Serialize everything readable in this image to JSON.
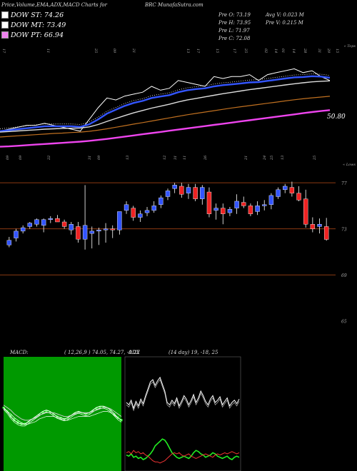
{
  "header": {
    "left_title": "Price,Volume,EMA,ADX,MACD Charts for",
    "right_title": "BRC MunafaSutra.com"
  },
  "legend": [
    {
      "label": "DOW ST: 74.26",
      "color": "#ffffff"
    },
    {
      "label": "DOW MT: 73.49",
      "color": "#ffffff"
    },
    {
      "label": "DOW PT: 66.94",
      "color": "#ee82ee"
    }
  ],
  "stats": {
    "open": "Pre  O: 73.19",
    "high": "Pre  H: 73.95",
    "low": "Pre  L: 71.97",
    "close": "Pre  C: 72.08",
    "avg_volume": "Avg V: 0.023 M",
    "pre_volume": "Pre  V: 0.215 M"
  },
  "top_panel": {
    "right_label_top": "« Tops",
    "right_label_bottom": "« Lows",
    "price_label": "50.80",
    "top_dates": [
      "17",
      "11",
      "25",
      "09",
      "21",
      "13",
      "17",
      "15",
      "17",
      "25",
      "02",
      "14",
      "01",
      "14",
      "28",
      "31",
      "29",
      "15"
    ],
    "bottom_dates": [
      "09",
      "09",
      "22",
      "31",
      "09",
      "13",
      "12",
      "31",
      "11",
      "26",
      "21",
      "24",
      "25",
      "13",
      "25"
    ]
  },
  "candle_panel": {
    "levels": [
      "77",
      "73",
      "69",
      "65"
    ]
  },
  "chart_data": [
    {
      "type": "line",
      "title": "",
      "description_series": [
        "price",
        "ema_short",
        "ema_mid",
        "ema_long",
        "dow_pt"
      ],
      "series": [
        {
          "name": "",
          "color": "#ffffff",
          "values": [
            24,
            25,
            26,
            27,
            27,
            28,
            27,
            26,
            25,
            24,
            30,
            36,
            41,
            40,
            42,
            43,
            44,
            47,
            45,
            46,
            50,
            49,
            48,
            47,
            52,
            51,
            52,
            52,
            53,
            50,
            53,
            54,
            55,
            56,
            54,
            55,
            52,
            50
          ]
        },
        {
          "name": "",
          "color": "#3355ff",
          "values": [
            24,
            24.5,
            25,
            25.5,
            26,
            26.5,
            26.5,
            26.5,
            26.5,
            26.2,
            27.5,
            30,
            33,
            35,
            37,
            38.5,
            39.5,
            41,
            41.8,
            42.5,
            44,
            45,
            45.6,
            46,
            47,
            47.6,
            48,
            48.5,
            49,
            49.2,
            49.8,
            50.4,
            51,
            51.6,
            51.8,
            52.2,
            52,
            51.4
          ]
        },
        {
          "name": "",
          "color": "#dddddd",
          "values": [
            23.5,
            23.8,
            24.1,
            24.4,
            24.7,
            25,
            25.2,
            25.4,
            25.5,
            25.6,
            26.2,
            27.4,
            29,
            30.5,
            32,
            33.4,
            34.6,
            35.8,
            36.8,
            37.8,
            39,
            40,
            40.8,
            41.6,
            42.4,
            43.2,
            43.9,
            44.6,
            45.3,
            45.9,
            46.5,
            47.1,
            47.7,
            48.3,
            48.8,
            49.3,
            49.6,
            49.8
          ]
        },
        {
          "name": "",
          "color": "#c07020",
          "values": [
            21,
            21.3,
            21.6,
            21.9,
            22.2,
            22.5,
            22.8,
            23,
            23.3,
            23.5,
            23.9,
            24.5,
            25.2,
            26,
            26.8,
            27.6,
            28.4,
            29.2,
            30,
            30.8,
            31.6,
            32.4,
            33.1,
            33.8,
            34.5,
            35.2,
            35.9,
            36.5,
            37.1,
            37.7,
            38.3,
            38.9,
            39.5,
            40.1,
            40.6,
            41.1,
            41.5,
            41.9
          ]
        },
        {
          "name": "",
          "color": "#ee44ee",
          "values": [
            16,
            16.2,
            16.5,
            16.8,
            17.1,
            17.4,
            17.7,
            18,
            18.3,
            18.6,
            19,
            19.5,
            20,
            20.6,
            21.2,
            21.8,
            22.4,
            23,
            23.6,
            24.2,
            24.8,
            25.4,
            26,
            26.6,
            27.2,
            27.8,
            28.4,
            29,
            29.6,
            30.2,
            30.8,
            31.4,
            32,
            32.6,
            33.2,
            33.8,
            34.3,
            34.8
          ]
        }
      ]
    },
    {
      "type": "candlestick",
      "title": "",
      "y_range": [
        63,
        78
      ],
      "candles": [
        {
          "o": 71.6,
          "h": 72.3,
          "l": 71.4,
          "c": 72.0
        },
        {
          "o": 72.2,
          "h": 73.0,
          "l": 71.9,
          "c": 72.8
        },
        {
          "o": 72.8,
          "h": 73.3,
          "l": 72.6,
          "c": 73.1
        },
        {
          "o": 73.2,
          "h": 73.6,
          "l": 73.0,
          "c": 73.5
        },
        {
          "o": 73.4,
          "h": 73.9,
          "l": 73.2,
          "c": 73.8
        },
        {
          "o": 73.3,
          "h": 73.9,
          "l": 72.7,
          "c": 73.8
        },
        {
          "o": 73.8,
          "h": 74.1,
          "l": 73.5,
          "c": 73.9
        },
        {
          "o": 73.9,
          "h": 74.2,
          "l": 73.6,
          "c": 73.6
        },
        {
          "o": 73.6,
          "h": 73.8,
          "l": 73.0,
          "c": 73.2
        },
        {
          "o": 72.9,
          "h": 73.6,
          "l": 72.5,
          "c": 73.4
        },
        {
          "o": 73.2,
          "h": 73.6,
          "l": 71.8,
          "c": 72.1
        },
        {
          "o": 72.1,
          "h": 76.8,
          "l": 71.2,
          "c": 73.3
        },
        {
          "o": 72.6,
          "h": 73.2,
          "l": 71.3,
          "c": 72.8
        },
        {
          "o": 72.8,
          "h": 73.1,
          "l": 71.6,
          "c": 72.9
        },
        {
          "o": 72.9,
          "h": 73.5,
          "l": 71.8,
          "c": 73.0
        },
        {
          "o": 73.0,
          "h": 73.3,
          "l": 72.2,
          "c": 72.9
        },
        {
          "o": 72.9,
          "h": 74.5,
          "l": 72.5,
          "c": 74.5
        },
        {
          "o": 74.6,
          "h": 75.4,
          "l": 74.3,
          "c": 75.1
        },
        {
          "o": 74.8,
          "h": 75.0,
          "l": 73.7,
          "c": 74.0
        },
        {
          "o": 74.0,
          "h": 74.6,
          "l": 73.6,
          "c": 74.3
        },
        {
          "o": 74.4,
          "h": 74.9,
          "l": 74.1,
          "c": 74.6
        },
        {
          "o": 74.6,
          "h": 75.4,
          "l": 74.4,
          "c": 75.0
        },
        {
          "o": 75.1,
          "h": 75.9,
          "l": 74.8,
          "c": 75.7
        },
        {
          "o": 75.8,
          "h": 76.5,
          "l": 75.5,
          "c": 76.3
        },
        {
          "o": 76.5,
          "h": 77.0,
          "l": 76.1,
          "c": 76.8
        },
        {
          "o": 76.7,
          "h": 77.0,
          "l": 75.7,
          "c": 76.0
        },
        {
          "o": 76.1,
          "h": 76.9,
          "l": 75.6,
          "c": 76.6
        },
        {
          "o": 76.6,
          "h": 76.9,
          "l": 75.4,
          "c": 75.6
        },
        {
          "o": 75.6,
          "h": 76.8,
          "l": 75.1,
          "c": 76.6
        },
        {
          "o": 76.2,
          "h": 76.6,
          "l": 74.0,
          "c": 74.3
        },
        {
          "o": 74.6,
          "h": 75.2,
          "l": 73.8,
          "c": 74.8
        },
        {
          "o": 74.8,
          "h": 75.2,
          "l": 73.4,
          "c": 74.3
        },
        {
          "o": 74.4,
          "h": 74.9,
          "l": 74.1,
          "c": 74.7
        },
        {
          "o": 74.8,
          "h": 76.0,
          "l": 74.3,
          "c": 75.4
        },
        {
          "o": 75.3,
          "h": 75.8,
          "l": 74.8,
          "c": 75.0
        },
        {
          "o": 75.0,
          "h": 75.2,
          "l": 74.1,
          "c": 74.3
        },
        {
          "o": 74.5,
          "h": 75.4,
          "l": 74.2,
          "c": 75.0
        },
        {
          "o": 75.0,
          "h": 75.5,
          "l": 74.6,
          "c": 75.1
        },
        {
          "o": 75.1,
          "h": 76.1,
          "l": 74.7,
          "c": 75.9
        },
        {
          "o": 75.8,
          "h": 76.6,
          "l": 75.6,
          "c": 76.4
        },
        {
          "o": 76.4,
          "h": 76.9,
          "l": 76.1,
          "c": 76.7
        },
        {
          "o": 76.6,
          "h": 77.1,
          "l": 75.8,
          "c": 76.1
        },
        {
          "o": 76.1,
          "h": 76.7,
          "l": 75.4,
          "c": 75.5
        },
        {
          "o": 75.6,
          "h": 76.4,
          "l": 73.1,
          "c": 73.4
        },
        {
          "o": 73.4,
          "h": 74.0,
          "l": 72.7,
          "c": 73.0
        },
        {
          "o": 73.2,
          "h": 73.9,
          "l": 72.6,
          "c": 73.4
        },
        {
          "o": 73.2,
          "h": 73.95,
          "l": 71.97,
          "c": 72.08
        }
      ],
      "bullish_color": "#3355ff",
      "bearish_color": "#ee2222"
    },
    {
      "type": "line",
      "title": "MACD:",
      "subtitle": "( 12,26,9 ) 74.05,  74.27,  -0.22",
      "series": [
        {
          "name": "",
          "color": "#ffffff",
          "values": [
            -1.0,
            -1.3,
            -1.7,
            -2.0,
            -2.2,
            -2.3,
            -2.3,
            -2.1,
            -1.9,
            -1.7,
            -1.5,
            -1.3,
            -1.2,
            -1.3,
            -1.5,
            -1.7,
            -1.8,
            -1.9,
            -1.8,
            -1.6,
            -1.4,
            -1.3,
            -1.4,
            -1.5,
            -1.4,
            -1.2,
            -1.0,
            -0.9,
            -0.9,
            -1.0,
            -1.2,
            -1.5,
            -1.8,
            -2.0
          ]
        },
        {
          "name": "",
          "color": "#cccccc",
          "values": [
            -0.8,
            -1.0,
            -1.2,
            -1.5,
            -1.7,
            -1.9,
            -2.0,
            -2.0,
            -1.9,
            -1.8,
            -1.6,
            -1.5,
            -1.4,
            -1.4,
            -1.4,
            -1.5,
            -1.6,
            -1.7,
            -1.7,
            -1.6,
            -1.5,
            -1.4,
            -1.4,
            -1.4,
            -1.4,
            -1.3,
            -1.2,
            -1.1,
            -1.0,
            -1.0,
            -1.1,
            -1.3,
            -1.5,
            -1.7
          ]
        }
      ]
    },
    {
      "type": "line",
      "title": "ADX",
      "subtitle": "(14 day) 19,  -18,  25",
      "series": [
        {
          "name": "",
          "color": "#ffffff",
          "values": [
            60,
            58,
            62,
            55,
            61,
            57,
            63,
            59,
            66,
            72,
            78,
            80,
            75,
            79,
            82,
            76,
            70,
            60,
            58,
            62,
            59,
            64,
            57,
            61,
            66,
            63,
            58,
            62,
            67,
            60,
            64,
            70,
            66,
            61,
            58,
            63,
            66,
            60,
            62,
            65,
            58,
            61,
            64,
            57,
            60,
            62,
            59,
            63
          ]
        },
        {
          "name": "",
          "color": "#22ee22",
          "values": [
            14,
            13,
            15,
            12,
            13,
            11,
            12,
            10,
            11,
            13,
            15,
            18,
            22,
            24,
            26,
            28,
            27,
            24,
            20,
            16,
            14,
            12,
            11,
            12,
            13,
            12,
            11,
            13,
            16,
            18,
            17,
            15,
            14,
            12,
            13,
            14,
            16,
            15,
            13,
            12,
            11,
            12,
            13,
            11,
            10,
            12,
            13,
            12
          ]
        },
        {
          "name": "",
          "color": "#ee3333",
          "values": [
            16,
            17,
            15,
            18,
            16,
            17,
            15,
            16,
            14,
            13,
            11,
            9,
            8,
            8,
            7,
            8,
            9,
            11,
            13,
            15,
            16,
            15,
            16,
            14,
            13,
            14,
            15,
            13,
            12,
            11,
            12,
            13,
            14,
            15,
            14,
            13,
            12,
            14,
            15,
            14,
            15,
            16,
            15,
            16,
            17,
            16,
            15,
            16
          ]
        }
      ]
    }
  ]
}
